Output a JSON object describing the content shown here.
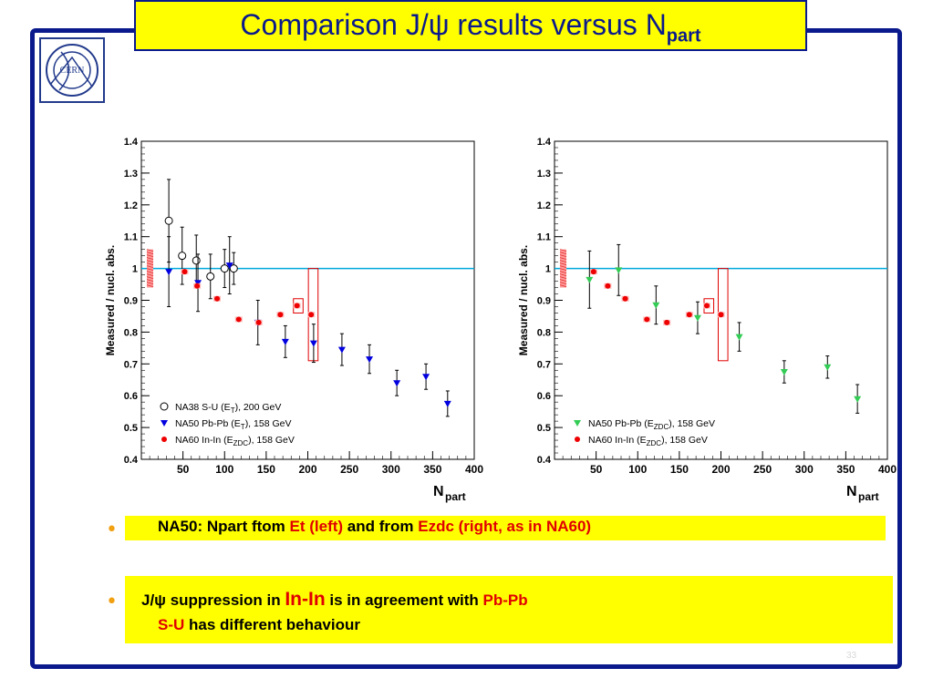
{
  "title": {
    "main": "Comparison J/ψ results versus  N",
    "sub": "part"
  },
  "logo": {
    "text": "CERN"
  },
  "bullets": {
    "b1": {
      "part1": "NA50: Npart ftom ",
      "et": "Et (left)",
      "part2": " and from ",
      "ezdc": "Ezdc (right, as in NA60)"
    },
    "b2": {
      "part1": "J/ψ suppression in ",
      "inin": "In-In",
      "part2": " is in agreement with ",
      "pbpb": "Pb-Pb",
      "su": "S-U",
      "part3": " has different behaviour"
    }
  },
  "slide_number": "33",
  "colors": {
    "frame": "#0a1a8c",
    "highlight": "#ffff00",
    "accent_red": "#e00000",
    "bullet": "#f0a010",
    "reference_line": "#00aadd"
  },
  "chart_data": [
    {
      "type": "scatter",
      "ylabel": "Measured / nucl. abs.",
      "xlabel": "N",
      "xlabel_sub": "part",
      "xlim": [
        0,
        400
      ],
      "ylim": [
        0.4,
        1.4
      ],
      "xticks": [
        50,
        100,
        150,
        200,
        250,
        300,
        350,
        400
      ],
      "yticks": [
        0.4,
        0.5,
        0.6,
        0.7,
        0.8,
        0.9,
        1,
        1.1,
        1.2,
        1.3,
        1.4
      ],
      "reference_line": 1,
      "legend_position": "bottom-left",
      "series": [
        {
          "name": "NA38 S-U (E",
          "name_sub": "T",
          "name_suffix": "), 200 GeV",
          "marker": "open-circle",
          "color": "#000000",
          "points": [
            {
              "x": 33,
              "y": 1.15,
              "err": 0.13
            },
            {
              "x": 49,
              "y": 1.04,
              "err": 0.09
            },
            {
              "x": 66,
              "y": 1.025,
              "err": 0.08
            },
            {
              "x": 83,
              "y": 0.975,
              "err": 0.07
            },
            {
              "x": 100,
              "y": 1.0,
              "err": 0.06
            },
            {
              "x": 111,
              "y": 1.0,
              "err": 0.05
            }
          ]
        },
        {
          "name": "NA50 Pb-Pb (E",
          "name_sub": "T",
          "name_suffix": "), 158 GeV",
          "marker": "triangle-down",
          "color": "#0000e0",
          "points": [
            {
              "x": 33,
              "y": 0.99,
              "err": 0.11
            },
            {
              "x": 68,
              "y": 0.955,
              "err": 0.09
            },
            {
              "x": 106,
              "y": 1.01,
              "err": 0.09
            },
            {
              "x": 140,
              "y": 0.83,
              "err": 0.07
            },
            {
              "x": 173,
              "y": 0.77,
              "err": 0.05
            },
            {
              "x": 207,
              "y": 0.765,
              "err": 0.06
            },
            {
              "x": 241,
              "y": 0.745,
              "err": 0.05
            },
            {
              "x": 274,
              "y": 0.715,
              "err": 0.045
            },
            {
              "x": 307,
              "y": 0.64,
              "err": 0.04
            },
            {
              "x": 342,
              "y": 0.66,
              "err": 0.04
            },
            {
              "x": 368,
              "y": 0.575,
              "err": 0.04
            }
          ]
        },
        {
          "name": "NA60 In-In (E",
          "name_sub": "ZDC",
          "name_suffix": "), 158 GeV",
          "marker": "filled-circle",
          "color": "#ee0000",
          "points": [
            {
              "x": 52,
              "y": 0.99
            },
            {
              "x": 67,
              "y": 0.945
            },
            {
              "x": 91,
              "y": 0.905
            },
            {
              "x": 117,
              "y": 0.84
            },
            {
              "x": 141,
              "y": 0.83
            },
            {
              "x": 167,
              "y": 0.855
            },
            {
              "x": 187,
              "y": 0.883
            },
            {
              "x": 204,
              "y": 0.855
            }
          ]
        }
      ]
    },
    {
      "type": "scatter",
      "ylabel": "Measured / nucl. abs.",
      "xlabel": "N",
      "xlabel_sub": "part",
      "xlim": [
        0,
        400
      ],
      "ylim": [
        0.4,
        1.4
      ],
      "xticks": [
        50,
        100,
        150,
        200,
        250,
        300,
        350,
        400
      ],
      "yticks": [
        0.4,
        0.5,
        0.6,
        0.7,
        0.8,
        0.9,
        1,
        1.1,
        1.2,
        1.3,
        1.4
      ],
      "reference_line": 1,
      "legend_position": "bottom-left",
      "series": [
        {
          "name": "NA50 Pb-Pb (E",
          "name_sub": "ZDC",
          "name_suffix": "), 158 GeV",
          "marker": "triangle-down",
          "color": "#33cc55",
          "points": [
            {
              "x": 42,
              "y": 0.965,
              "err": 0.09
            },
            {
              "x": 77,
              "y": 0.995,
              "err": 0.08
            },
            {
              "x": 122,
              "y": 0.885,
              "err": 0.06
            },
            {
              "x": 172,
              "y": 0.845,
              "err": 0.05
            },
            {
              "x": 222,
              "y": 0.785,
              "err": 0.045
            },
            {
              "x": 276,
              "y": 0.675,
              "err": 0.035
            },
            {
              "x": 328,
              "y": 0.69,
              "err": 0.035
            },
            {
              "x": 364,
              "y": 0.59,
              "err": 0.045
            }
          ]
        },
        {
          "name": "NA60 In-In (E",
          "name_sub": "ZDC",
          "name_suffix": "), 158 GeV",
          "marker": "filled-circle",
          "color": "#ee0000",
          "points": [
            {
              "x": 47,
              "y": 0.99
            },
            {
              "x": 64,
              "y": 0.945
            },
            {
              "x": 85,
              "y": 0.905
            },
            {
              "x": 111,
              "y": 0.84
            },
            {
              "x": 135,
              "y": 0.83
            },
            {
              "x": 162,
              "y": 0.855
            },
            {
              "x": 183,
              "y": 0.883
            },
            {
              "x": 200,
              "y": 0.855
            }
          ]
        }
      ]
    }
  ]
}
